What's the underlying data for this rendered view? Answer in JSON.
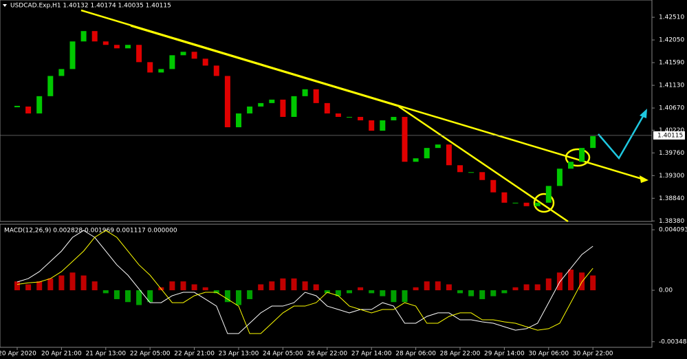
{
  "chart_data": [
    {
      "type": "candlestick",
      "title": "USDCAD.Exp,H1  1.40132 1.40174 1.40035 1.40115",
      "categories": [
        "20 Apr 2020",
        null,
        null,
        null,
        "20 Apr 21:00",
        null,
        null,
        null,
        "21 Apr 13:00",
        null,
        null,
        null,
        "22 Apr 05:00",
        null,
        null,
        null,
        "22 Apr 21:00",
        null,
        null,
        null,
        "23 Apr 13:00",
        null,
        null,
        null,
        "24 Apr 05:00",
        null,
        null,
        null,
        "26 Apr 22:00",
        null,
        null,
        null,
        "27 Apr 14:00",
        null,
        null,
        null,
        "28 Apr 06:00",
        null,
        null,
        null,
        "28 Apr 22:00",
        null,
        null,
        null,
        "29 Apr 14:00",
        null,
        null,
        null,
        "30 Apr 06:00",
        null,
        null,
        null,
        "30 Apr 22:00"
      ],
      "values": [
        1.407,
        1.4056,
        1.4091,
        1.4132,
        1.4146,
        1.4202,
        1.4223,
        1.4202,
        1.4195,
        1.4188,
        1.4195,
        1.416,
        1.4139,
        1.4146,
        1.4174,
        1.4181,
        1.4167,
        1.4153,
        1.4132,
        1.4028,
        1.4056,
        1.407,
        1.4077,
        1.4084,
        1.4049,
        1.4091,
        1.4105,
        1.4077,
        1.4056,
        1.4049,
        1.4049,
        1.4042,
        1.4021,
        1.4042,
        1.4049,
        1.3958,
        1.3965,
        1.3986,
        1.3993,
        1.3951,
        1.3937,
        1.3937,
        1.3921,
        1.3896,
        1.3875,
        1.3875,
        1.3868,
        1.3875,
        1.3909,
        1.3944,
        1.3958,
        1.3986,
        1.401
      ],
      "up_color": "#00c800",
      "down_color": "#e00000",
      "ylim": [
        1.3837,
        1.4286
      ],
      "yticks": [
        {
          "value": 1.4251,
          "label": "1.42510"
        },
        {
          "value": 1.4205,
          "label": "1.42050"
        },
        {
          "value": 1.4159,
          "label": "1.41590"
        },
        {
          "value": 1.4113,
          "label": "1.41130"
        },
        {
          "value": 1.4067,
          "label": "1.40670"
        },
        {
          "value": 1.4022,
          "label": "1.40220"
        },
        {
          "value": 1.3976,
          "label": "1.39760"
        },
        {
          "value": 1.393,
          "label": "1.39300"
        },
        {
          "value": 1.3884,
          "label": "1.38840"
        },
        {
          "value": 1.3838,
          "label": "1.38380"
        }
      ],
      "current_price": 1.40115
    },
    {
      "type": "macd",
      "title": "MACD(12,26,9) 0.002828 0.001969 0.001117 0.000000",
      "ylim": [
        -0.00386,
        0.00447
      ],
      "yticks": [
        0.004093,
        {
          "value": 0,
          "label": "0.00"
        },
        -0.00348
      ],
      "histogram": [
        0.0006,
        0.0004,
        0.0006,
        0.0008,
        0.001,
        0.0012,
        0.001,
        0.0006,
        -0.0002,
        -0.0006,
        -0.0008,
        -0.001,
        -0.0008,
        0.0002,
        0.0006,
        0.0006,
        0.0004,
        0.0002,
        -0.0002,
        -0.0008,
        -0.001,
        -0.0006,
        0.0004,
        0.0006,
        0.0008,
        0.0008,
        0.0006,
        0.0004,
        -0.0002,
        -0.0004,
        -0.0002,
        0.0002,
        -0.0002,
        -0.0004,
        -0.0008,
        -0.0008,
        0.0002,
        0.0006,
        0.0006,
        0.0004,
        -0.0002,
        -0.0004,
        -0.0006,
        -0.0004,
        -0.0002,
        0.0002,
        0.0004,
        0.0004,
        0.0008,
        0.0012,
        0.0014,
        0.0012,
        0.001
      ],
      "hist_up_color": "#c00000",
      "hist_down_color": "#00a000",
      "series": [
        {
          "color": "#ffffff",
          "values": [
            0.00056,
            0.00079,
            0.00126,
            0.00195,
            0.00265,
            0.00358,
            0.00405,
            0.00358,
            0.00265,
            0.00172,
            0.00102,
            9e-05,
            -0.00084,
            -0.00084,
            -0.00037,
            -0.00014,
            -0.00014,
            -0.0006,
            -0.00107,
            -0.00293,
            -0.00293,
            -0.00223,
            -0.00153,
            -0.00107,
            -0.00107,
            -0.00084,
            -0.00014,
            -0.00037,
            -0.00107,
            -0.0013,
            -0.00153,
            -0.0013,
            -0.0013,
            -0.00084,
            -0.00107,
            -0.00223,
            -0.00223,
            -0.00177,
            -0.00153,
            -0.00153,
            -0.002,
            -0.002,
            -0.00214,
            -0.00223,
            -0.00247,
            -0.0027,
            -0.0026,
            -0.00223,
            -0.00084,
            0.00056,
            0.00149,
            0.00242,
            0.00298
          ]
        },
        {
          "color": "#ffff00",
          "values": [
            0.0004,
            0.0005,
            0.00056,
            0.00079,
            0.00126,
            0.00195,
            0.00265,
            0.00358,
            0.00405,
            0.00358,
            0.00265,
            0.00172,
            0.00102,
            9e-05,
            -0.00084,
            -0.00084,
            -0.00037,
            -0.00014,
            -0.00014,
            -0.0006,
            -0.00107,
            -0.00293,
            -0.00293,
            -0.00223,
            -0.00153,
            -0.00107,
            -0.00107,
            -0.00084,
            -0.00014,
            -0.00037,
            -0.00107,
            -0.0013,
            -0.00153,
            -0.0013,
            -0.0013,
            -0.00084,
            -0.00107,
            -0.00223,
            -0.00223,
            -0.00177,
            -0.00153,
            -0.00153,
            -0.002,
            -0.002,
            -0.00214,
            -0.00223,
            -0.00247,
            -0.0027,
            -0.0026,
            -0.00223,
            -0.00084,
            0.00056,
            0.00149
          ]
        }
      ]
    }
  ]
}
